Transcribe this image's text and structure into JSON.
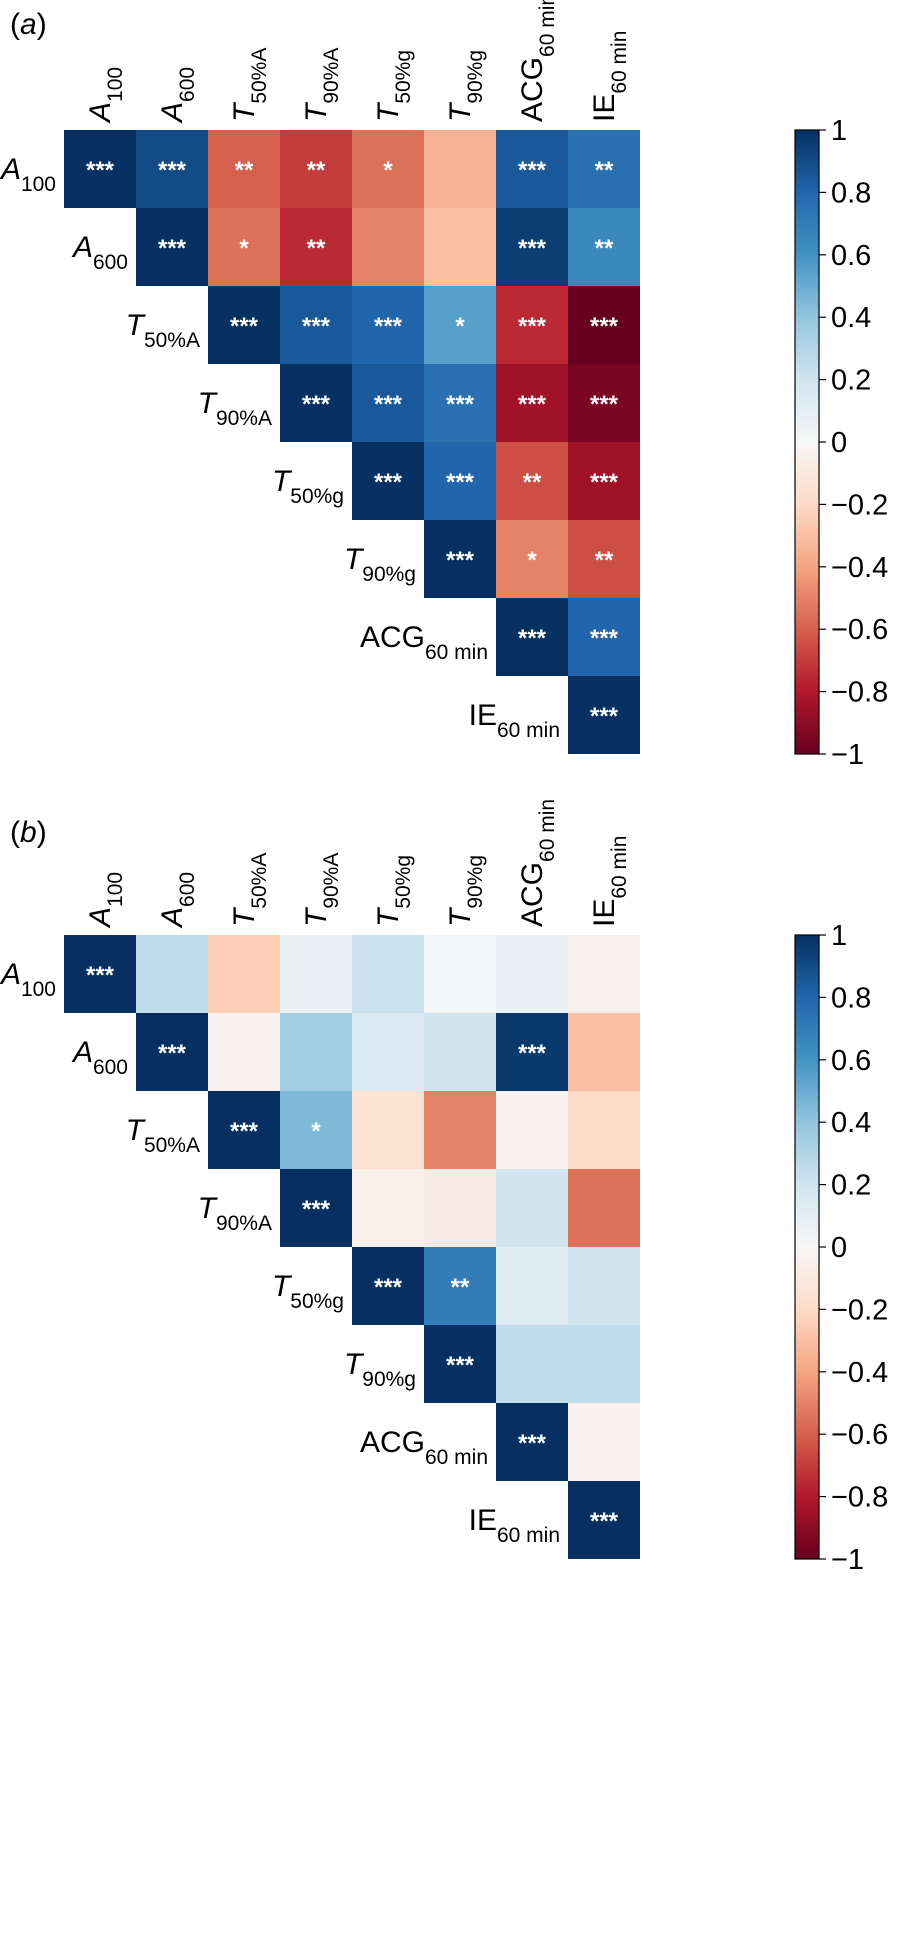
{
  "chart_data": [
    {
      "type": "heatmap",
      "panel": "(a)",
      "variables": [
        {
          "id": "A100",
          "base": "A",
          "sub": "100",
          "italic": true
        },
        {
          "id": "A600",
          "base": "A",
          "sub": "600",
          "italic": true
        },
        {
          "id": "T50A",
          "base": "T",
          "sub": "50%A",
          "italic": true
        },
        {
          "id": "T90A",
          "base": "T",
          "sub": "90%A",
          "italic": true
        },
        {
          "id": "T50g",
          "base": "T",
          "sub": "50%g",
          "italic": true
        },
        {
          "id": "T90g",
          "base": "T",
          "sub": "90%g",
          "italic": true
        },
        {
          "id": "ACG60",
          "base": "ACG",
          "sub": "60 min",
          "italic": false
        },
        {
          "id": "IE60",
          "base": "IE",
          "sub": "60 min",
          "italic": false
        }
      ],
      "colorbar": {
        "min": -1,
        "max": 1,
        "ticks": [
          "1",
          "0.8",
          "0.6",
          "0.4",
          "0.2",
          "0",
          "−0.2",
          "−0.4",
          "−0.6",
          "−0.8",
          "−1"
        ]
      },
      "values": [
        [
          1.0,
          0.9,
          -0.6,
          -0.7,
          -0.55,
          -0.35,
          0.85,
          0.75
        ],
        [
          null,
          1.0,
          -0.55,
          -0.75,
          -0.5,
          -0.3,
          0.95,
          0.65
        ],
        [
          null,
          null,
          1.0,
          0.85,
          0.8,
          0.55,
          -0.75,
          -1.0
        ],
        [
          null,
          null,
          null,
          1.0,
          0.85,
          0.75,
          -0.85,
          -0.95
        ],
        [
          null,
          null,
          null,
          null,
          1.0,
          0.8,
          -0.65,
          -0.85
        ],
        [
          null,
          null,
          null,
          null,
          null,
          1.0,
          -0.5,
          -0.65
        ],
        [
          null,
          null,
          null,
          null,
          null,
          null,
          1.0,
          0.8
        ],
        [
          null,
          null,
          null,
          null,
          null,
          null,
          null,
          1.0
        ]
      ],
      "stars": [
        [
          "***",
          "***",
          "**",
          "**",
          "*",
          "",
          "***",
          "**"
        ],
        [
          "",
          "***",
          "*",
          "**",
          "",
          "",
          "***",
          "**"
        ],
        [
          "",
          "",
          "***",
          "***",
          "***",
          "*",
          "***",
          "***"
        ],
        [
          "",
          "",
          "",
          "***",
          "***",
          "***",
          "***",
          "***"
        ],
        [
          "",
          "",
          "",
          "",
          "***",
          "***",
          "**",
          "***"
        ],
        [
          "",
          "",
          "",
          "",
          "",
          "***",
          "*",
          "**"
        ],
        [
          "",
          "",
          "",
          "",
          "",
          "",
          "***",
          "***"
        ],
        [
          "",
          "",
          "",
          "",
          "",
          "",
          "",
          "***"
        ]
      ]
    },
    {
      "type": "heatmap",
      "panel": "(b)",
      "variables": [
        {
          "id": "A100",
          "base": "A",
          "sub": "100",
          "italic": true
        },
        {
          "id": "A600",
          "base": "A",
          "sub": "600",
          "italic": true
        },
        {
          "id": "T50A",
          "base": "T",
          "sub": "50%A",
          "italic": true
        },
        {
          "id": "T90A",
          "base": "T",
          "sub": "90%A",
          "italic": true
        },
        {
          "id": "T50g",
          "base": "T",
          "sub": "50%g",
          "italic": true
        },
        {
          "id": "T90g",
          "base": "T",
          "sub": "90%g",
          "italic": true
        },
        {
          "id": "ACG60",
          "base": "ACG",
          "sub": "60 min",
          "italic": false
        },
        {
          "id": "IE60",
          "base": "IE",
          "sub": "60 min",
          "italic": false
        }
      ],
      "colorbar": {
        "min": -1,
        "max": 1,
        "ticks": [
          "1",
          "0.8",
          "0.6",
          "0.4",
          "0.2",
          "0",
          "−0.2",
          "−0.4",
          "−0.6",
          "−0.8",
          "−1"
        ]
      },
      "values": [
        [
          1.0,
          0.25,
          -0.25,
          0.07,
          0.22,
          0.02,
          0.07,
          -0.05
        ],
        [
          null,
          1.0,
          -0.03,
          0.35,
          0.15,
          0.2,
          0.97,
          -0.3
        ],
        [
          null,
          null,
          1.0,
          0.45,
          -0.15,
          -0.5,
          -0.03,
          -0.2
        ],
        [
          null,
          null,
          null,
          1.0,
          -0.06,
          -0.08,
          0.2,
          -0.55
        ],
        [
          null,
          null,
          null,
          null,
          1.0,
          0.7,
          0.13,
          0.2
        ],
        [
          null,
          null,
          null,
          null,
          null,
          1.0,
          0.25,
          0.25
        ],
        [
          null,
          null,
          null,
          null,
          null,
          null,
          1.0,
          -0.04
        ],
        [
          null,
          null,
          null,
          null,
          null,
          null,
          null,
          1.0
        ]
      ],
      "stars": [
        [
          "***",
          "",
          "",
          "",
          "",
          "",
          "",
          ""
        ],
        [
          "",
          "***",
          "",
          "",
          "",
          "",
          "***",
          ""
        ],
        [
          "",
          "",
          "***",
          "*",
          "",
          "",
          "",
          ""
        ],
        [
          "",
          "",
          "",
          "***",
          "",
          "",
          "",
          ""
        ],
        [
          "",
          "",
          "",
          "",
          "***",
          "**",
          "",
          ""
        ],
        [
          "",
          "",
          "",
          "",
          "",
          "***",
          "",
          ""
        ],
        [
          "",
          "",
          "",
          "",
          "",
          "",
          "***",
          ""
        ],
        [
          "",
          "",
          "",
          "",
          "",
          "",
          "",
          "***"
        ]
      ]
    }
  ]
}
